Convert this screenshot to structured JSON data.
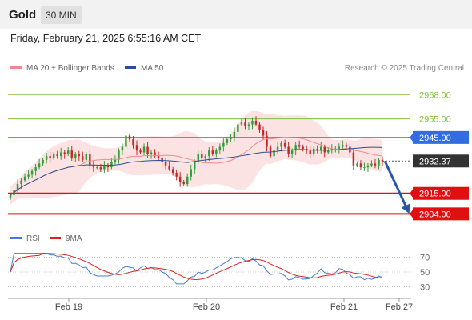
{
  "header": {
    "symbol": "Gold",
    "timeframe": "30 MIN"
  },
  "timestamp": "Friday, February 21, 2025 6:55:16 AM CET",
  "legend": [
    {
      "label": "MA 20 + Bollinger Bands",
      "color": "#f08a8a"
    },
    {
      "label": "MA 50",
      "color": "#2d4f8f"
    }
  ],
  "credit": "Research © 2025 Trading Central",
  "rsi_legend": [
    {
      "label": "RSI",
      "color": "#4a78d8"
    },
    {
      "label": "9MA",
      "color": "#e02020"
    }
  ],
  "chart_data": {
    "type": "candlestick",
    "y_range": [
      2899,
      2978
    ],
    "price_levels": [
      {
        "value": 2968.0,
        "label": "2968.00",
        "kind": "target",
        "color": "#7fbf3f"
      },
      {
        "value": 2955.0,
        "label": "2955.00",
        "kind": "target",
        "color": "#7fbf3f"
      },
      {
        "value": 2945.0,
        "label": "2945.00",
        "kind": "pivot",
        "color": "#2f6de0"
      },
      {
        "value": 2932.37,
        "label": "2932.37",
        "kind": "last",
        "color": "#333333"
      },
      {
        "value": 2915.0,
        "label": "2915.00",
        "kind": "support",
        "color": "#e01010"
      },
      {
        "value": 2904.0,
        "label": "2904.00",
        "kind": "support",
        "color": "#e01010"
      }
    ],
    "x_labels": [
      "Feb 19",
      "Feb 20",
      "Feb 21",
      "Feb 27"
    ],
    "arrow": {
      "direction": "down",
      "from": 2932.37,
      "to": 2904.0
    },
    "close": [
      2914,
      2917,
      2920,
      2922,
      2924,
      2925,
      2927,
      2929,
      2931,
      2933,
      2935,
      2934,
      2936,
      2935,
      2937,
      2936,
      2938,
      2934,
      2936,
      2935,
      2933,
      2936,
      2930,
      2929,
      2929,
      2928,
      2930,
      2929,
      2932,
      2933,
      2938,
      2940,
      2946,
      2944,
      2941,
      2938,
      2937,
      2940,
      2936,
      2937,
      2935,
      2934,
      2932,
      2930,
      2928,
      2926,
      2924,
      2921,
      2920,
      2924,
      2928,
      2932,
      2936,
      2934,
      2935,
      2938,
      2936,
      2938,
      2940,
      2942,
      2944,
      2945,
      2948,
      2952,
      2953,
      2951,
      2952,
      2954,
      2952,
      2949,
      2946,
      2940,
      2935,
      2938,
      2940,
      2942,
      2940,
      2936,
      2938,
      2941,
      2940,
      2939,
      2938,
      2936,
      2939,
      2938,
      2940,
      2937,
      2938,
      2939,
      2939,
      2940,
      2941,
      2940,
      2937,
      2930,
      2931,
      2929,
      2929,
      2930,
      2931,
      2930,
      2933,
      2932.37
    ],
    "rsi_axis": [
      30,
      50,
      70
    ]
  }
}
